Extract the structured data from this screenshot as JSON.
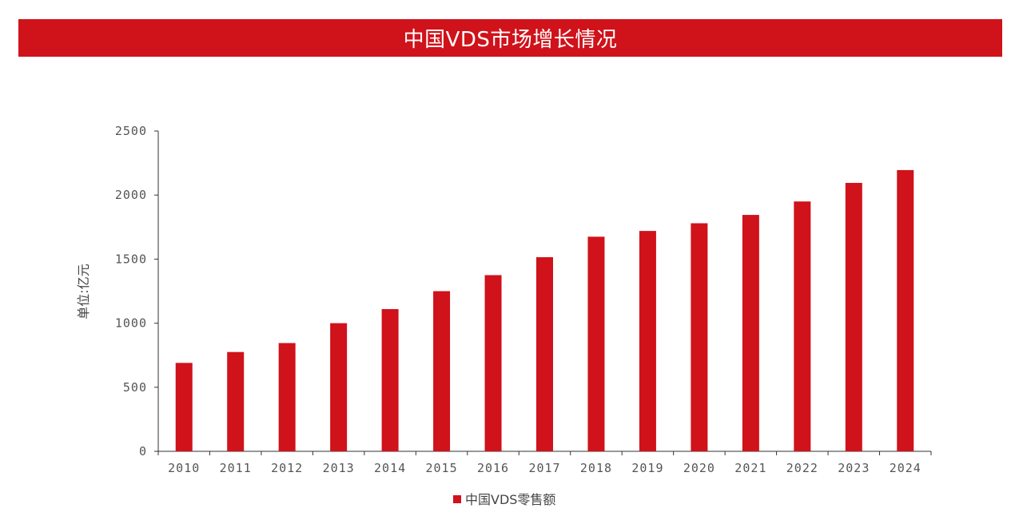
{
  "title": "中国VDS市场增长情况",
  "chart_data": {
    "type": "bar",
    "categories": [
      "2010",
      "2011",
      "2012",
      "2013",
      "2014",
      "2015",
      "2016",
      "2017",
      "2018",
      "2019",
      "2020",
      "2021",
      "2022",
      "2023",
      "2024"
    ],
    "series": [
      {
        "name": "中国VDS零售额",
        "values": [
          690,
          775,
          845,
          1000,
          1110,
          1250,
          1375,
          1515,
          1675,
          1720,
          1780,
          1845,
          1950,
          2095,
          2195
        ]
      }
    ],
    "ylabel": "单位:亿元",
    "xlabel": "",
    "ylim": [
      0,
      2500
    ],
    "yticks": [
      0,
      500,
      1000,
      1500,
      2000,
      2500
    ],
    "grid": false,
    "legend_position": "bottom-center",
    "bar_color": "#d0121b"
  }
}
